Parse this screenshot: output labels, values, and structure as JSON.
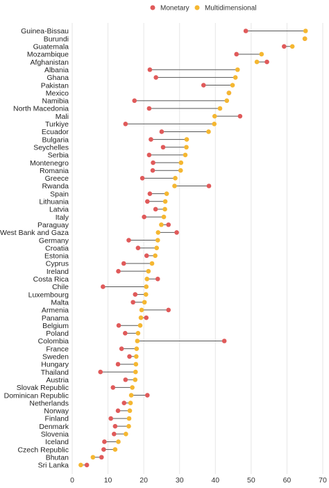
{
  "chart_data": {
    "type": "dumbbell",
    "title": "",
    "xlabel": "",
    "ylabel": "",
    "xlim": [
      0,
      70
    ],
    "x_ticks": [
      0,
      10,
      20,
      30,
      40,
      50,
      60,
      70
    ],
    "grid": "vertical",
    "legend_position": "top",
    "series": [
      {
        "name": "Monetary",
        "color": "#e05a5a"
      },
      {
        "name": "Multidimensional",
        "color": "#f5b731"
      }
    ],
    "rows": [
      {
        "country": "Guinea-Bissau",
        "monetary": 48.5,
        "multidimensional": 65.2
      },
      {
        "country": "Burundi",
        "monetary": 65.0,
        "multidimensional": 65.0
      },
      {
        "country": "Guatemala",
        "monetary": 59.2,
        "multidimensional": 61.5
      },
      {
        "country": "Mozambique",
        "monetary": 45.9,
        "multidimensional": 52.9
      },
      {
        "country": "Afghanistan",
        "monetary": 54.4,
        "multidimensional": 51.6
      },
      {
        "country": "Albania",
        "monetary": 21.7,
        "multidimensional": 46.2
      },
      {
        "country": "Ghana",
        "monetary": 23.4,
        "multidimensional": 45.6
      },
      {
        "country": "Pakistan",
        "monetary": 36.7,
        "multidimensional": 44.8
      },
      {
        "country": "Mexico",
        "monetary": 43.8,
        "multidimensional": 43.8
      },
      {
        "country": "Namibia",
        "monetary": 17.4,
        "multidimensional": 43.2
      },
      {
        "country": "North Macedonia",
        "monetary": 21.5,
        "multidimensional": 41.3
      },
      {
        "country": "Mali",
        "monetary": 46.9,
        "multidimensional": 39.8
      },
      {
        "country": "Turkiye",
        "monetary": 14.9,
        "multidimensional": 39.7
      },
      {
        "country": "Ecuador",
        "monetary": 25.0,
        "multidimensional": 38.1
      },
      {
        "country": "Bulgaria",
        "monetary": 22.0,
        "multidimensional": 32.0
      },
      {
        "country": "Seychelles",
        "monetary": 25.4,
        "multidimensional": 31.9
      },
      {
        "country": "Serbia",
        "monetary": 21.5,
        "multidimensional": 31.6
      },
      {
        "country": "Montenegro",
        "monetary": 22.6,
        "multidimensional": 30.4
      },
      {
        "country": "Romania",
        "monetary": 22.5,
        "multidimensional": 30.3
      },
      {
        "country": "Greece",
        "monetary": 19.6,
        "multidimensional": 28.8
      },
      {
        "country": "Rwanda",
        "monetary": 38.2,
        "multidimensional": 28.6
      },
      {
        "country": "Spain",
        "monetary": 21.7,
        "multidimensional": 26.4
      },
      {
        "country": "Lithuania",
        "monetary": 21.0,
        "multidimensional": 26.0
      },
      {
        "country": "Latvia",
        "monetary": 23.3,
        "multidimensional": 25.9
      },
      {
        "country": "Italy",
        "monetary": 20.1,
        "multidimensional": 25.6
      },
      {
        "country": "Paraguay",
        "monetary": 26.9,
        "multidimensional": 24.9
      },
      {
        "country": "West Bank and Gaza",
        "monetary": 29.2,
        "multidimensional": 24.0
      },
      {
        "country": "Germany",
        "monetary": 15.8,
        "multidimensional": 23.9
      },
      {
        "country": "Croatia",
        "monetary": 18.4,
        "multidimensional": 23.6
      },
      {
        "country": "Estonia",
        "monetary": 20.8,
        "multidimensional": 23.2
      },
      {
        "country": "Cyprus",
        "monetary": 14.4,
        "multidimensional": 22.3
      },
      {
        "country": "Ireland",
        "monetary": 12.9,
        "multidimensional": 21.3
      },
      {
        "country": "Costa Rica",
        "monetary": 23.9,
        "multidimensional": 20.9
      },
      {
        "country": "Chile",
        "monetary": 8.6,
        "multidimensional": 20.7
      },
      {
        "country": "Luxembourg",
        "monetary": 17.6,
        "multidimensional": 20.6
      },
      {
        "country": "Malta",
        "monetary": 17.0,
        "multidimensional": 20.2
      },
      {
        "country": "Armenia",
        "monetary": 26.9,
        "multidimensional": 19.4
      },
      {
        "country": "Panama",
        "monetary": 20.7,
        "multidimensional": 19.2
      },
      {
        "country": "Belgium",
        "monetary": 13.0,
        "multidimensional": 19.0
      },
      {
        "country": "Poland",
        "monetary": 14.8,
        "multidimensional": 18.4
      },
      {
        "country": "Colombia",
        "monetary": 42.5,
        "multidimensional": 18.2
      },
      {
        "country": "France",
        "monetary": 13.8,
        "multidimensional": 18.0
      },
      {
        "country": "Sweden",
        "monetary": 16.0,
        "multidimensional": 17.9
      },
      {
        "country": "Hungary",
        "monetary": 12.8,
        "multidimensional": 17.8
      },
      {
        "country": "Thailand",
        "monetary": 7.9,
        "multidimensional": 17.7
      },
      {
        "country": "Austria",
        "monetary": 14.9,
        "multidimensional": 17.6
      },
      {
        "country": "Slovak Republic",
        "monetary": 11.4,
        "multidimensional": 16.8
      },
      {
        "country": "Dominican Republic",
        "monetary": 21.0,
        "multidimensional": 16.5
      },
      {
        "country": "Netherlands",
        "monetary": 14.5,
        "multidimensional": 16.3
      },
      {
        "country": "Norway",
        "monetary": 12.8,
        "multidimensional": 16.1
      },
      {
        "country": "Finland",
        "monetary": 10.8,
        "multidimensional": 15.9
      },
      {
        "country": "Denmark",
        "monetary": 12.0,
        "multidimensional": 15.8
      },
      {
        "country": "Slovenia",
        "monetary": 11.7,
        "multidimensional": 15.0
      },
      {
        "country": "Iceland",
        "monetary": 9.0,
        "multidimensional": 12.9
      },
      {
        "country": "Czech Republic",
        "monetary": 8.8,
        "multidimensional": 12.0
      },
      {
        "country": "Bhutan",
        "monetary": 8.2,
        "multidimensional": 5.8
      },
      {
        "country": "Sri Lanka",
        "monetary": 4.1,
        "multidimensional": 2.4
      }
    ]
  }
}
